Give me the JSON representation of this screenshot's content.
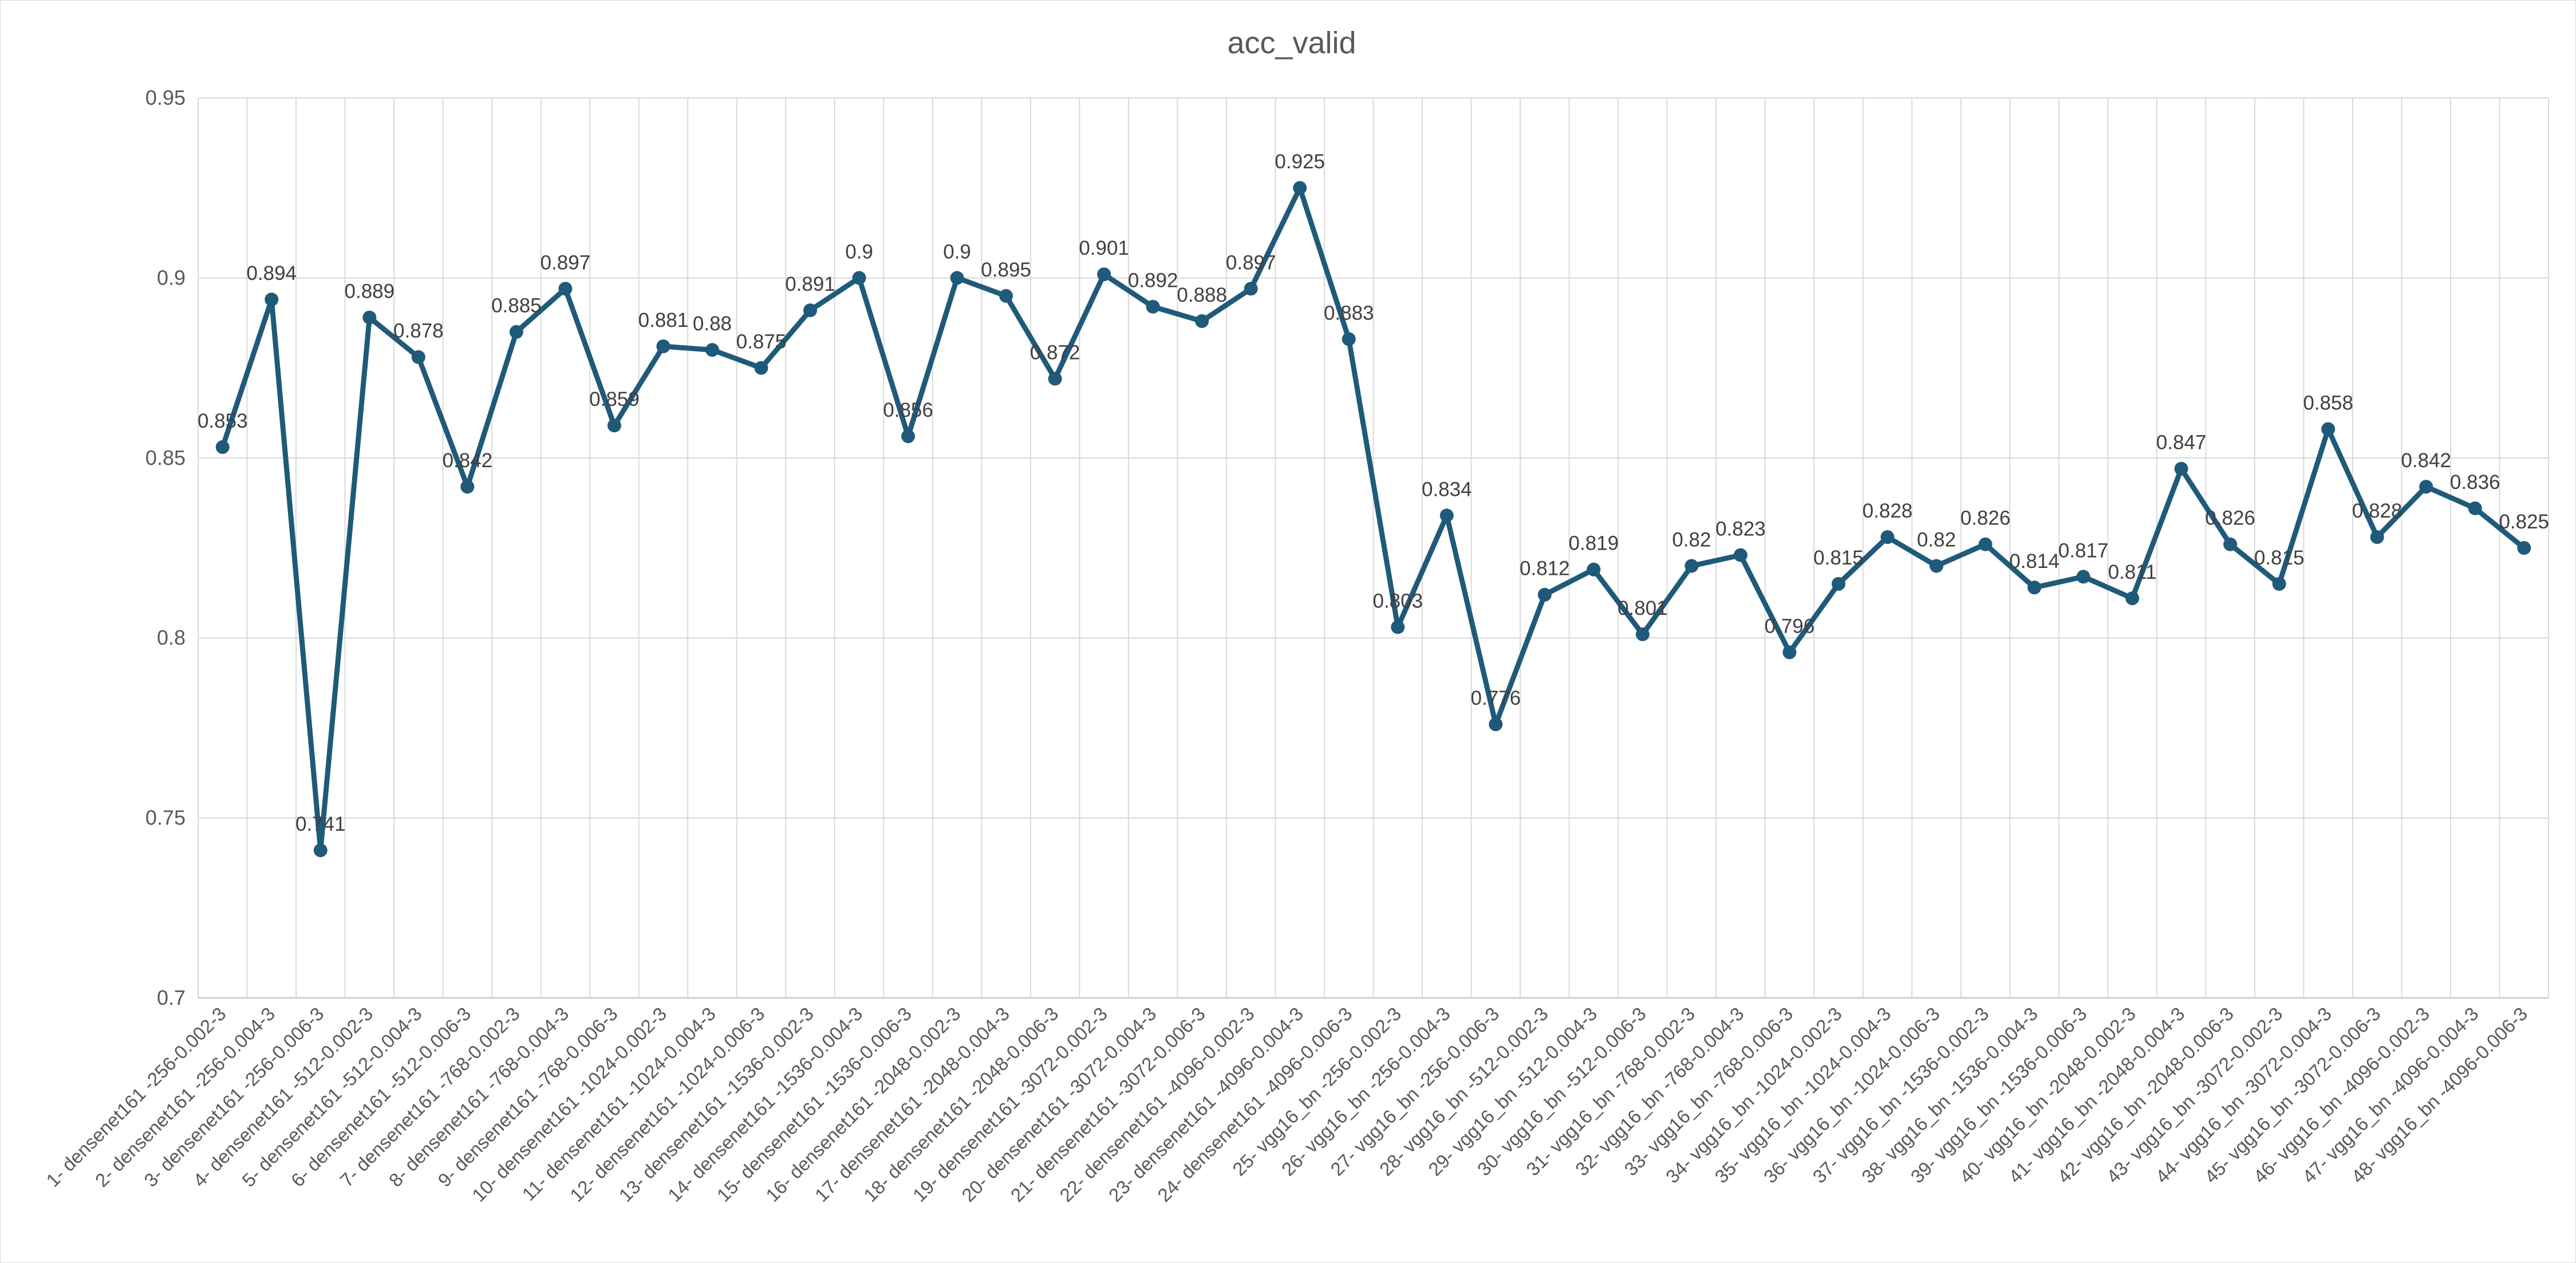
{
  "chart_data": {
    "type": "line",
    "title": "acc_valid",
    "xlabel": "",
    "ylabel": "",
    "ylim": [
      0.7,
      0.95
    ],
    "yticks": [
      "0.7",
      "0.75",
      "0.8",
      "0.85",
      "0.9",
      "0.95"
    ],
    "grid": true,
    "legend": "none",
    "series_color": "#1f5a7a",
    "categories": [
      "1- densenet161 -256-0.002-3",
      "2- densenet161 -256-0.004-3",
      "3- densenet161 -256-0.006-3",
      "4- densenet161 -512-0.002-3",
      "5- densenet161 -512-0.004-3",
      "6- densenet161 -512-0.006-3",
      "7- densenet161 -768-0.002-3",
      "8- densenet161 -768-0.004-3",
      "9- densenet161 -768-0.006-3",
      "10- densenet161 -1024-0.002-3",
      "11- densenet161 -1024-0.004-3",
      "12- densenet161 -1024-0.006-3",
      "13- densenet161 -1536-0.002-3",
      "14- densenet161 -1536-0.004-3",
      "15- densenet161 -1536-0.006-3",
      "16- densenet161 -2048-0.002-3",
      "17- densenet161 -2048-0.004-3",
      "18- densenet161 -2048-0.006-3",
      "19- densenet161 -3072-0.002-3",
      "20- densenet161 -3072-0.004-3",
      "21- densenet161 -3072-0.006-3",
      "22- densenet161 -4096-0.002-3",
      "23- densenet161 -4096-0.004-3",
      "24- densenet161 -4096-0.006-3",
      "25- vgg16_bn -256-0.002-3",
      "26- vgg16_bn -256-0.004-3",
      "27- vgg16_bn -256-0.006-3",
      "28- vgg16_bn -512-0.002-3",
      "29- vgg16_bn -512-0.004-3",
      "30- vgg16_bn -512-0.006-3",
      "31- vgg16_bn -768-0.002-3",
      "32- vgg16_bn -768-0.004-3",
      "33- vgg16_bn -768-0.006-3",
      "34- vgg16_bn -1024-0.002-3",
      "35- vgg16_bn -1024-0.004-3",
      "36- vgg16_bn -1024-0.006-3",
      "37- vgg16_bn -1536-0.002-3",
      "38- vgg16_bn -1536-0.004-3",
      "39- vgg16_bn -1536-0.006-3",
      "40- vgg16_bn -2048-0.002-3",
      "41- vgg16_bn -2048-0.004-3",
      "42- vgg16_bn -2048-0.006-3",
      "43- vgg16_bn -3072-0.002-3",
      "44- vgg16_bn -3072-0.004-3",
      "45- vgg16_bn -3072-0.006-3",
      "46- vgg16_bn -4096-0.002-3",
      "47- vgg16_bn -4096-0.004-3",
      "48- vgg16_bn -4096-0.006-3"
    ],
    "values": [
      0.853,
      0.894,
      0.741,
      0.889,
      0.878,
      0.842,
      0.885,
      0.897,
      0.859,
      0.881,
      0.88,
      0.875,
      0.891,
      0.9,
      0.856,
      0.9,
      0.895,
      0.872,
      0.901,
      0.892,
      0.888,
      0.897,
      0.925,
      0.883,
      0.803,
      0.834,
      0.776,
      0.812,
      0.819,
      0.801,
      0.82,
      0.823,
      0.796,
      0.815,
      0.828,
      0.82,
      0.826,
      0.814,
      0.817,
      0.811,
      0.847,
      0.826,
      0.815,
      0.858,
      0.828,
      0.842,
      0.836,
      0.825
    ]
  }
}
